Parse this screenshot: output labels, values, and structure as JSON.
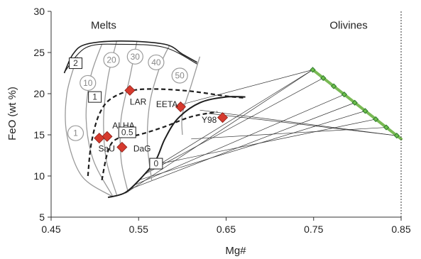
{
  "chart_data": {
    "type": "scatter",
    "title": "",
    "xlabel": "Mg#",
    "ylabel": "FeO (wt %)",
    "xlim": [
      0.45,
      0.85
    ],
    "ylim": [
      5,
      30
    ],
    "xticks": [
      {
        "value": 0.45,
        "label": "0.45"
      },
      {
        "value": 0.55,
        "label": "0.55"
      },
      {
        "value": 0.65,
        "label": "0.65"
      },
      {
        "value": 0.75,
        "label": "0.75"
      },
      {
        "value": 0.85,
        "label": "0.85"
      }
    ],
    "yticks": [
      {
        "value": 5,
        "label": "5"
      },
      {
        "value": 10,
        "label": "10"
      },
      {
        "value": 15,
        "label": "15"
      },
      {
        "value": 20,
        "label": "20"
      },
      {
        "value": 25,
        "label": "25"
      },
      {
        "value": 30,
        "label": "30"
      }
    ],
    "grid": false,
    "region_labels": [
      {
        "text": "Melts",
        "x": 0.51,
        "y": 28.3
      },
      {
        "text": "Olivines",
        "x": 0.79,
        "y": 28.3
      }
    ],
    "samples": [
      {
        "name": "LAR",
        "x": 0.54,
        "y": 20.4,
        "label_x": 0.54,
        "label_y": 19.0
      },
      {
        "name": "EETA",
        "x": 0.598,
        "y": 18.4,
        "label_x": 0.57,
        "label_y": 18.7
      },
      {
        "name": "Y98",
        "x": 0.646,
        "y": 17.1,
        "label_x": 0.622,
        "label_y": 16.8
      },
      {
        "name": "ALHA",
        "x": 0.514,
        "y": 14.8,
        "label_x": 0.52,
        "label_y": 16.1
      },
      {
        "name": "SaU",
        "x": 0.505,
        "y": 14.6,
        "label_x": 0.504,
        "label_y": 13.3
      },
      {
        "name": "DaG",
        "x": 0.531,
        "y": 13.5,
        "label_x": 0.544,
        "label_y": 13.3
      }
    ],
    "olivine_points": [
      {
        "x": 0.749,
        "y": 22.9
      },
      {
        "x": 0.761,
        "y": 21.9
      },
      {
        "x": 0.773,
        "y": 20.9
      },
      {
        "x": 0.785,
        "y": 19.9
      },
      {
        "x": 0.797,
        "y": 18.9
      },
      {
        "x": 0.809,
        "y": 17.9
      },
      {
        "x": 0.821,
        "y": 16.9
      },
      {
        "x": 0.833,
        "y": 15.9
      },
      {
        "x": 0.845,
        "y": 14.9
      }
    ],
    "olivine_line": [
      [
        0.749,
        22.9
      ],
      [
        0.85,
        14.5
      ]
    ],
    "tie_lines": [
      {
        "from": [
          0.596,
          18.6
        ],
        "to": [
          0.749,
          22.9
        ]
      },
      {
        "from": [
          0.56,
          10.5
        ],
        "to": [
          0.749,
          22.9
        ]
      },
      {
        "from": [
          0.535,
          7.9
        ],
        "to": [
          0.749,
          22.9
        ]
      },
      {
        "from": [
          0.555,
          10.1
        ],
        "to": [
          0.761,
          21.9
        ]
      },
      {
        "from": [
          0.545,
          8.9
        ],
        "to": [
          0.785,
          19.9
        ]
      },
      {
        "from": [
          0.54,
          8.4
        ],
        "to": [
          0.797,
          18.9
        ]
      },
      {
        "from": [
          0.55,
          9.5
        ],
        "to": [
          0.809,
          17.9
        ]
      },
      {
        "from": [
          0.575,
          11.5
        ],
        "to": [
          0.821,
          16.9
        ]
      },
      {
        "from": [
          0.61,
          14.5
        ],
        "to": [
          0.833,
          15.9
        ]
      },
      {
        "from": [
          0.62,
          18.0
        ],
        "to": [
          0.845,
          14.9
        ]
      },
      {
        "from": [
          0.63,
          17.6
        ],
        "to": [
          0.845,
          14.9
        ]
      }
    ],
    "grey_curves": [
      {
        "label": "1",
        "points": [
          [
            0.52,
            7.5
          ],
          [
            0.485,
            10
          ],
          [
            0.468,
            15
          ],
          [
            0.468,
            20
          ],
          [
            0.48,
            24.5
          ]
        ]
      },
      {
        "label": "10",
        "points": [
          [
            0.52,
            7.6
          ],
          [
            0.498,
            12
          ],
          [
            0.49,
            17
          ],
          [
            0.495,
            22
          ],
          [
            0.508,
            26
          ]
        ]
      },
      {
        "label": "20",
        "points": [
          [
            0.525,
            7.7
          ],
          [
            0.513,
            12
          ],
          [
            0.51,
            17
          ],
          [
            0.515,
            22
          ],
          [
            0.525,
            26.4
          ]
        ]
      },
      {
        "label": "30",
        "points": [
          [
            0.538,
            8
          ],
          [
            0.53,
            12
          ],
          [
            0.53,
            17
          ],
          [
            0.54,
            22
          ],
          [
            0.548,
            26.3
          ]
        ]
      },
      {
        "label": "40",
        "points": [
          [
            0.565,
            9.5
          ],
          [
            0.56,
            14
          ],
          [
            0.563,
            19
          ],
          [
            0.575,
            23.5
          ],
          [
            0.585,
            25.8
          ]
        ]
      },
      {
        "label": "50",
        "points": [
          [
            0.6,
            15
          ],
          [
            0.6,
            17.5
          ],
          [
            0.61,
            21
          ],
          [
            0.62,
            24.5
          ]
        ]
      }
    ],
    "grey_circle_labels": [
      {
        "text": "1",
        "x": 0.478,
        "y": 15.2
      },
      {
        "text": "10",
        "x": 0.492,
        "y": 21.3
      },
      {
        "text": "20",
        "x": 0.519,
        "y": 24.1
      },
      {
        "text": "30",
        "x": 0.546,
        "y": 24.5
      },
      {
        "text": "40",
        "x": 0.57,
        "y": 23.8
      },
      {
        "text": "50",
        "x": 0.597,
        "y": 22.2
      }
    ],
    "upper_boundary": [
      [
        0.465,
        22.5
      ],
      [
        0.475,
        24.8
      ],
      [
        0.49,
        26
      ],
      [
        0.53,
        26.4
      ],
      [
        0.58,
        26
      ],
      [
        0.6,
        24.8
      ],
      [
        0.617,
        23.8
      ]
    ],
    "upper_boundary_inner": [
      [
        0.465,
        22.6
      ],
      [
        0.49,
        25.6
      ],
      [
        0.53,
        26
      ],
      [
        0.58,
        25.6
      ],
      [
        0.617,
        23.6
      ]
    ],
    "dashed_curves": [
      {
        "label": "1",
        "points": [
          [
            0.492,
            10
          ],
          [
            0.496,
            14
          ],
          [
            0.505,
            17.5
          ],
          [
            0.52,
            19.5
          ],
          [
            0.55,
            20.5
          ],
          [
            0.6,
            20.4
          ],
          [
            0.65,
            19.7
          ],
          [
            0.67,
            19.5
          ]
        ]
      },
      {
        "label": "0.5",
        "points": [
          [
            0.508,
            9.5
          ],
          [
            0.515,
            13
          ],
          [
            0.525,
            14.5
          ],
          [
            0.55,
            15
          ],
          [
            0.58,
            16
          ],
          [
            0.61,
            17.2
          ],
          [
            0.64,
            17.8
          ]
        ]
      }
    ],
    "solid_curve": {
      "label": "0",
      "points": [
        [
          0.515,
          7.4
        ],
        [
          0.535,
          8
        ],
        [
          0.555,
          10
        ],
        [
          0.57,
          12
        ],
        [
          0.58,
          14.5
        ],
        [
          0.595,
          17
        ],
        [
          0.62,
          18.9
        ],
        [
          0.65,
          19.6
        ],
        [
          0.672,
          19.6
        ]
      ]
    },
    "box_labels": [
      {
        "text": "2",
        "x": 0.478,
        "y": 23.7
      },
      {
        "text": "1",
        "x": 0.5,
        "y": 19.6
      },
      {
        "text": "0.5",
        "x": 0.537,
        "y": 15.3
      },
      {
        "text": "0",
        "x": 0.57,
        "y": 11.5
      }
    ],
    "colors": {
      "sample": "#d63a2e",
      "sample_stroke": "#8a1f18",
      "olivine_line": "#79b954",
      "olivine_marker": "#2e7a2e",
      "grey_curve": "#9a9a9a",
      "black": "#1e1e1e",
      "tie_line": "#333333"
    }
  }
}
